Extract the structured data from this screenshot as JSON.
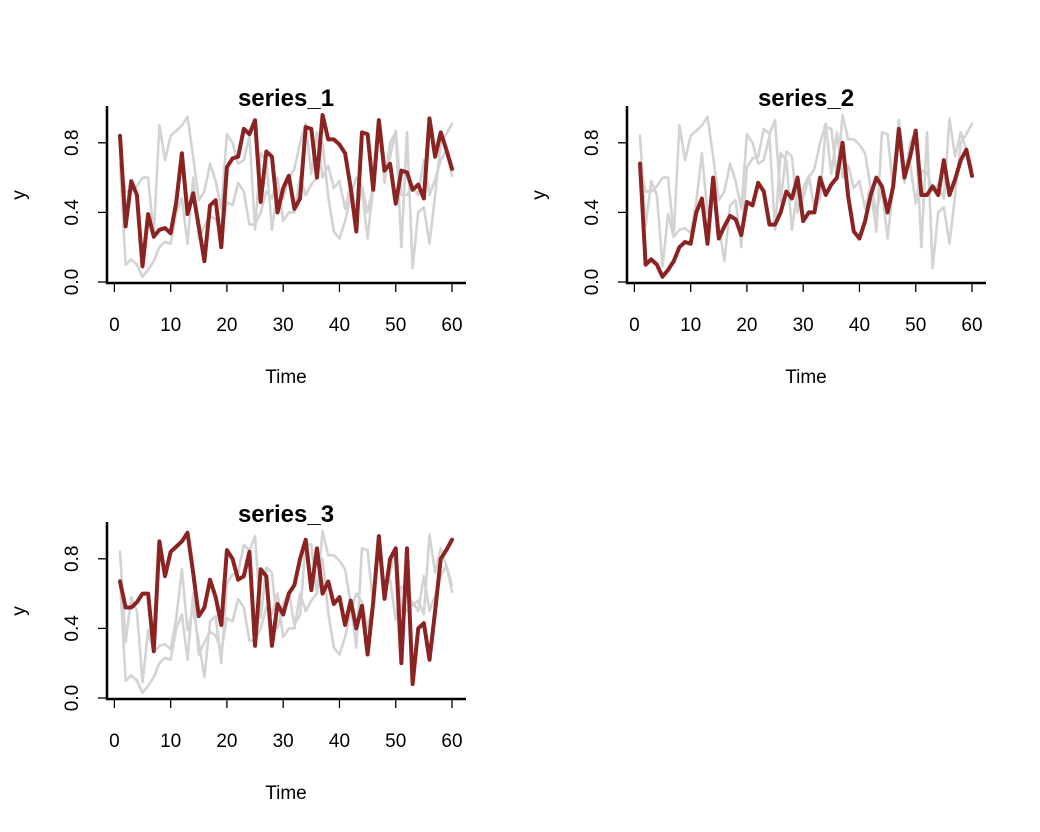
{
  "colors": {
    "highlight": "#8b2323",
    "background_series": "#d3d3d3",
    "axis": "#000000"
  },
  "chart_data": [
    {
      "type": "line",
      "title": "series_1",
      "xlabel": "Time",
      "ylabel": "y",
      "xlim": [
        1,
        60
      ],
      "ylim": [
        0,
        1
      ],
      "xticks": [
        "0",
        "10",
        "20",
        "30",
        "40",
        "50",
        "60"
      ],
      "yticks": [
        "0.0",
        "0.4",
        "0.8"
      ],
      "grid": false,
      "highlight_series": 0,
      "series": [
        {
          "values": [
            0.84,
            0.32,
            0.58,
            0.5,
            0.09,
            0.39,
            0.26,
            0.3,
            0.31,
            0.28,
            0.46,
            0.74,
            0.39,
            0.51,
            0.32,
            0.12,
            0.44,
            0.47,
            0.2,
            0.66,
            0.71,
            0.72,
            0.88,
            0.85,
            0.93,
            0.46,
            0.75,
            0.72,
            0.4,
            0.54,
            0.61,
            0.42,
            0.48,
            0.89,
            0.88,
            0.6,
            0.96,
            0.82,
            0.82,
            0.79,
            0.74,
            0.54,
            0.29,
            0.86,
            0.85,
            0.53,
            0.93,
            0.64,
            0.68,
            0.45,
            0.64,
            0.63,
            0.53,
            0.56,
            0.48,
            0.94,
            0.72,
            0.86,
            0.76,
            0.65
          ]
        },
        {
          "values": [
            0.68,
            0.1,
            0.13,
            0.1,
            0.03,
            0.07,
            0.12,
            0.2,
            0.23,
            0.22,
            0.4,
            0.48,
            0.22,
            0.6,
            0.25,
            0.32,
            0.38,
            0.36,
            0.27,
            0.46,
            0.44,
            0.57,
            0.52,
            0.33,
            0.33,
            0.4,
            0.52,
            0.48,
            0.6,
            0.35,
            0.4,
            0.4,
            0.6,
            0.5,
            0.56,
            0.6,
            0.8,
            0.49,
            0.29,
            0.25,
            0.35,
            0.5,
            0.6,
            0.55,
            0.4,
            0.55,
            0.88,
            0.6,
            0.72,
            0.87,
            0.5,
            0.5,
            0.55,
            0.5,
            0.7,
            0.5,
            0.59,
            0.7,
            0.76,
            0.61
          ]
        },
        {
          "values": [
            0.67,
            0.52,
            0.52,
            0.55,
            0.6,
            0.6,
            0.27,
            0.9,
            0.7,
            0.84,
            0.87,
            0.9,
            0.95,
            0.72,
            0.47,
            0.52,
            0.68,
            0.58,
            0.42,
            0.85,
            0.8,
            0.68,
            0.7,
            0.84,
            0.3,
            0.74,
            0.7,
            0.3,
            0.54,
            0.48,
            0.6,
            0.65,
            0.8,
            0.91,
            0.62,
            0.86,
            0.6,
            0.67,
            0.54,
            0.58,
            0.42,
            0.56,
            0.4,
            0.53,
            0.25,
            0.55,
            0.93,
            0.57,
            0.8,
            0.86,
            0.2,
            0.86,
            0.08,
            0.4,
            0.43,
            0.22,
            0.5,
            0.8,
            0.85,
            0.91
          ]
        }
      ]
    },
    {
      "type": "line",
      "title": "series_2",
      "xlabel": "Time",
      "ylabel": "y",
      "xlim": [
        1,
        60
      ],
      "ylim": [
        0,
        1
      ],
      "xticks": [
        "0",
        "10",
        "20",
        "30",
        "40",
        "50",
        "60"
      ],
      "yticks": [
        "0.0",
        "0.4",
        "0.8"
      ],
      "grid": false,
      "highlight_series": 1,
      "series": [
        {
          "values": [
            0.84,
            0.32,
            0.58,
            0.5,
            0.09,
            0.39,
            0.26,
            0.3,
            0.31,
            0.28,
            0.46,
            0.74,
            0.39,
            0.51,
            0.32,
            0.12,
            0.44,
            0.47,
            0.2,
            0.66,
            0.71,
            0.72,
            0.88,
            0.85,
            0.93,
            0.46,
            0.75,
            0.72,
            0.4,
            0.54,
            0.61,
            0.42,
            0.48,
            0.89,
            0.88,
            0.6,
            0.96,
            0.82,
            0.82,
            0.79,
            0.74,
            0.54,
            0.29,
            0.86,
            0.85,
            0.53,
            0.93,
            0.64,
            0.68,
            0.45,
            0.64,
            0.63,
            0.53,
            0.56,
            0.48,
            0.94,
            0.72,
            0.86,
            0.76,
            0.65
          ]
        },
        {
          "values": [
            0.68,
            0.1,
            0.13,
            0.1,
            0.03,
            0.07,
            0.12,
            0.2,
            0.23,
            0.22,
            0.4,
            0.48,
            0.22,
            0.6,
            0.25,
            0.32,
            0.38,
            0.36,
            0.27,
            0.46,
            0.44,
            0.57,
            0.52,
            0.33,
            0.33,
            0.4,
            0.52,
            0.48,
            0.6,
            0.35,
            0.4,
            0.4,
            0.6,
            0.5,
            0.56,
            0.6,
            0.8,
            0.49,
            0.29,
            0.25,
            0.35,
            0.5,
            0.6,
            0.55,
            0.4,
            0.55,
            0.88,
            0.6,
            0.72,
            0.87,
            0.5,
            0.5,
            0.55,
            0.5,
            0.7,
            0.5,
            0.59,
            0.7,
            0.76,
            0.61
          ]
        },
        {
          "values": [
            0.67,
            0.52,
            0.52,
            0.55,
            0.6,
            0.6,
            0.27,
            0.9,
            0.7,
            0.84,
            0.87,
            0.9,
            0.95,
            0.72,
            0.47,
            0.52,
            0.68,
            0.58,
            0.42,
            0.85,
            0.8,
            0.68,
            0.7,
            0.84,
            0.3,
            0.74,
            0.7,
            0.3,
            0.54,
            0.48,
            0.6,
            0.65,
            0.8,
            0.91,
            0.62,
            0.86,
            0.6,
            0.67,
            0.54,
            0.58,
            0.42,
            0.56,
            0.4,
            0.53,
            0.25,
            0.55,
            0.93,
            0.57,
            0.8,
            0.86,
            0.2,
            0.86,
            0.08,
            0.4,
            0.43,
            0.22,
            0.5,
            0.8,
            0.85,
            0.91
          ]
        }
      ]
    },
    {
      "type": "line",
      "title": "series_3",
      "xlabel": "Time",
      "ylabel": "y",
      "xlim": [
        1,
        60
      ],
      "ylim": [
        0,
        1
      ],
      "xticks": [
        "0",
        "10",
        "20",
        "30",
        "40",
        "50",
        "60"
      ],
      "yticks": [
        "0.0",
        "0.4",
        "0.8"
      ],
      "grid": false,
      "highlight_series": 2,
      "series": [
        {
          "values": [
            0.84,
            0.32,
            0.58,
            0.5,
            0.09,
            0.39,
            0.26,
            0.3,
            0.31,
            0.28,
            0.46,
            0.74,
            0.39,
            0.51,
            0.32,
            0.12,
            0.44,
            0.47,
            0.2,
            0.66,
            0.71,
            0.72,
            0.88,
            0.85,
            0.93,
            0.46,
            0.75,
            0.72,
            0.4,
            0.54,
            0.61,
            0.42,
            0.48,
            0.89,
            0.88,
            0.6,
            0.96,
            0.82,
            0.82,
            0.79,
            0.74,
            0.54,
            0.29,
            0.86,
            0.85,
            0.53,
            0.93,
            0.64,
            0.68,
            0.45,
            0.64,
            0.63,
            0.53,
            0.56,
            0.48,
            0.94,
            0.72,
            0.86,
            0.76,
            0.65
          ]
        },
        {
          "values": [
            0.68,
            0.1,
            0.13,
            0.1,
            0.03,
            0.07,
            0.12,
            0.2,
            0.23,
            0.22,
            0.4,
            0.48,
            0.22,
            0.6,
            0.25,
            0.32,
            0.38,
            0.36,
            0.27,
            0.46,
            0.44,
            0.57,
            0.52,
            0.33,
            0.33,
            0.4,
            0.52,
            0.48,
            0.6,
            0.35,
            0.4,
            0.4,
            0.6,
            0.5,
            0.56,
            0.6,
            0.8,
            0.49,
            0.29,
            0.25,
            0.35,
            0.5,
            0.6,
            0.55,
            0.4,
            0.55,
            0.88,
            0.6,
            0.72,
            0.87,
            0.5,
            0.5,
            0.55,
            0.5,
            0.7,
            0.5,
            0.59,
            0.7,
            0.76,
            0.61
          ]
        },
        {
          "values": [
            0.67,
            0.52,
            0.52,
            0.55,
            0.6,
            0.6,
            0.27,
            0.9,
            0.7,
            0.84,
            0.87,
            0.9,
            0.95,
            0.72,
            0.47,
            0.52,
            0.68,
            0.58,
            0.42,
            0.85,
            0.8,
            0.68,
            0.7,
            0.84,
            0.3,
            0.74,
            0.7,
            0.3,
            0.54,
            0.48,
            0.6,
            0.65,
            0.8,
            0.91,
            0.62,
            0.86,
            0.6,
            0.67,
            0.54,
            0.58,
            0.42,
            0.56,
            0.4,
            0.53,
            0.25,
            0.55,
            0.93,
            0.57,
            0.8,
            0.86,
            0.2,
            0.86,
            0.08,
            0.4,
            0.43,
            0.22,
            0.5,
            0.8,
            0.85,
            0.91
          ]
        }
      ]
    }
  ]
}
